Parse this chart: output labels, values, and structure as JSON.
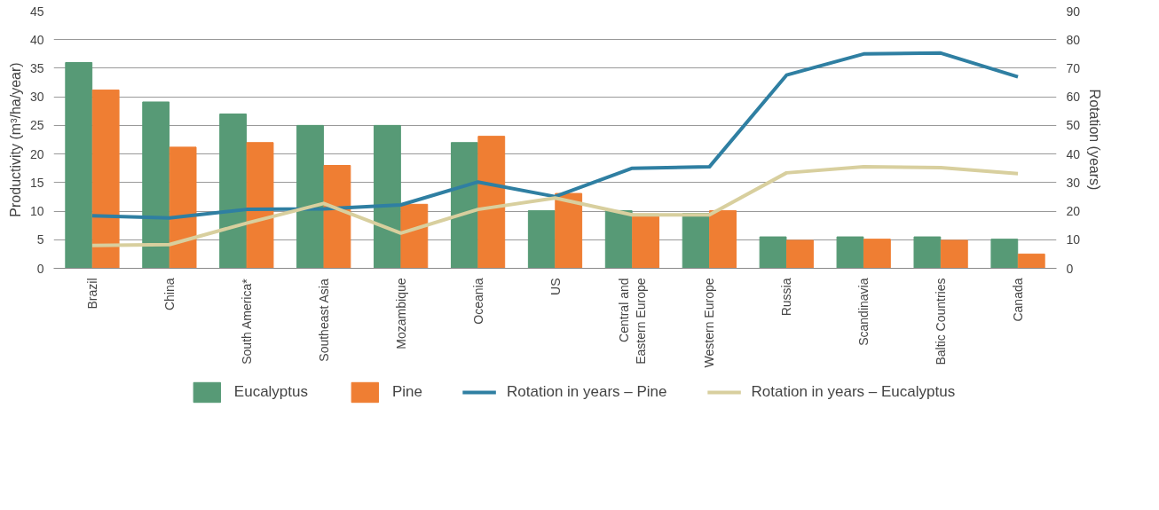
{
  "chart_data": {
    "type": "bar",
    "ylabel": "Productivity (m³/ha/year)",
    "y2label": "Rotation (years)",
    "categories": [
      "Brazil",
      "China",
      "South America*",
      "Southeast Asia",
      "Mozambique",
      "Oceania",
      "US",
      "Central and Eastern Europe",
      "Western Europe",
      "Russia",
      "Scandinavia",
      "Baltic Countries",
      "Canada"
    ],
    "series": [
      {
        "name": "Eucalyptus",
        "color": "#579a76",
        "values": [
          36.0,
          29.1,
          27.0,
          25.0,
          25.0,
          22.0,
          10.1,
          10.1,
          9.6,
          5.5,
          5.5,
          5.5,
          5.1
        ]
      },
      {
        "name": "Pine",
        "color": "#ef7e33",
        "values": [
          31.2,
          21.2,
          22.0,
          18.0,
          11.2,
          23.1,
          13.1,
          9.5,
          10.1,
          4.9,
          5.1,
          4.9,
          2.5
        ]
      },
      {
        "name": "Rotation in years – Pine",
        "type": "line",
        "axis": "y2",
        "color": "#2f7fa2",
        "values": [
          18.4,
          17.6,
          20.6,
          20.8,
          22.2,
          30.2,
          25.1,
          35.0,
          35.5,
          67.6,
          75.0,
          75.3,
          67.0
        ]
      },
      {
        "name": "Rotation in years – Eucalyptus",
        "type": "line",
        "axis": "y2",
        "color": "#d8cf9e",
        "values": [
          8.0,
          8.3,
          15.8,
          22.7,
          12.3,
          20.6,
          24.6,
          18.7,
          18.7,
          33.4,
          35.5,
          35.2,
          33.1
        ]
      }
    ],
    "ylim": [
      0,
      45
    ],
    "yticks": [
      0,
      5,
      10,
      15,
      20,
      25,
      30,
      35,
      40,
      45
    ],
    "y2lim": [
      0,
      90
    ],
    "y2ticks": [
      0,
      10,
      20,
      30,
      40,
      50,
      60,
      70,
      80,
      90
    ],
    "grid": "y",
    "legend": "bottom",
    "marker": "none",
    "line_style": "solid"
  }
}
